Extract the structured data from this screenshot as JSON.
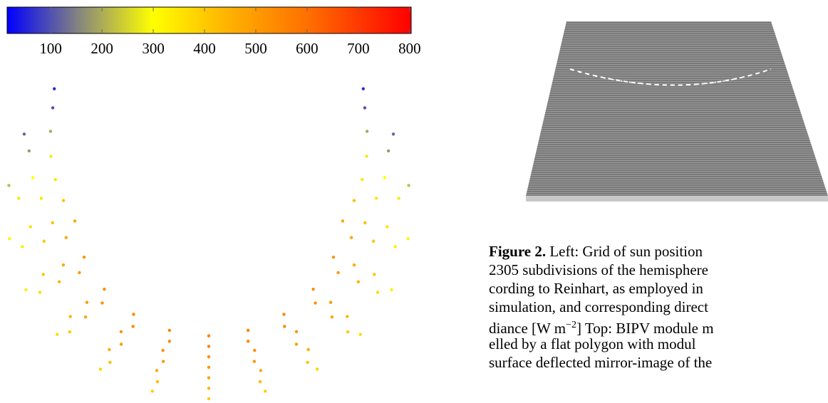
{
  "chart_data": {
    "type": "sky-scatter",
    "colorbar": {
      "clim": [
        15,
        803
      ],
      "ticks": [
        100,
        200,
        300,
        400,
        500,
        600,
        700,
        800
      ]
    },
    "colormap": [
      {
        "value": 15,
        "color": "#0000ff"
      },
      {
        "value": 160,
        "color": "#8a8a7a"
      },
      {
        "value": 300,
        "color": "#ffff00"
      },
      {
        "value": 450,
        "color": "#ffb000"
      },
      {
        "value": 600,
        "color": "#ff7000"
      },
      {
        "value": 803,
        "color": "#ff0000"
      }
    ],
    "rings": [
      {
        "altitude": 0,
        "azimuth": [
          -130,
          130
        ],
        "values": [
          60,
          120,
          220,
          290,
          330,
          360,
          380,
          395,
          400,
          395,
          380,
          360,
          330,
          290,
          220,
          120,
          60
        ]
      },
      {
        "altitude": 5,
        "azimuth": [
          -125,
          125
        ],
        "values": [
          100,
          180,
          280,
          330,
          370,
          400,
          420,
          430,
          440,
          430,
          420,
          400,
          370,
          330,
          280,
          180,
          100
        ]
      },
      {
        "altitude": 10,
        "azimuth": [
          -118,
          118
        ],
        "values": [
          200,
          300,
          360,
          410,
          440,
          460,
          470,
          480,
          470,
          460,
          440,
          410,
          360,
          300,
          200
        ]
      },
      {
        "altitude": 15,
        "azimuth": [
          -110,
          110
        ],
        "values": [
          280,
          350,
          410,
          450,
          480,
          500,
          510,
          515,
          510,
          500,
          480,
          450,
          410,
          350,
          280
        ]
      },
      {
        "altitude": 20,
        "azimuth": [
          -102,
          102
        ],
        "values": [
          350,
          420,
          470,
          500,
          520,
          530,
          535,
          530,
          520,
          500,
          470,
          420,
          350
        ]
      },
      {
        "altitude": 25,
        "azimuth": [
          -94,
          94
        ],
        "values": [
          420,
          470,
          510,
          530,
          545,
          550,
          555,
          550,
          545,
          530,
          510,
          470,
          420
        ]
      },
      {
        "altitude": 30,
        "azimuth": [
          -85,
          85
        ],
        "values": [
          480,
          520,
          540,
          555,
          560,
          565,
          560,
          555,
          540,
          520,
          480
        ]
      }
    ]
  },
  "caption": {
    "label": "Figure 2.",
    "lines": [
      " Left: Grid of sun position",
      "2305 subdivisions of the hemisphere",
      "cording to Reinhart, as employed in",
      "simulation, and corresponding direct"
    ],
    "unit_line": [
      "diance [W m",
      "−2",
      "] Top: BIPV module m"
    ],
    "more_lines": [
      "elled by a flat polygon with modul",
      "surface deflected mirror-image of the"
    ]
  }
}
